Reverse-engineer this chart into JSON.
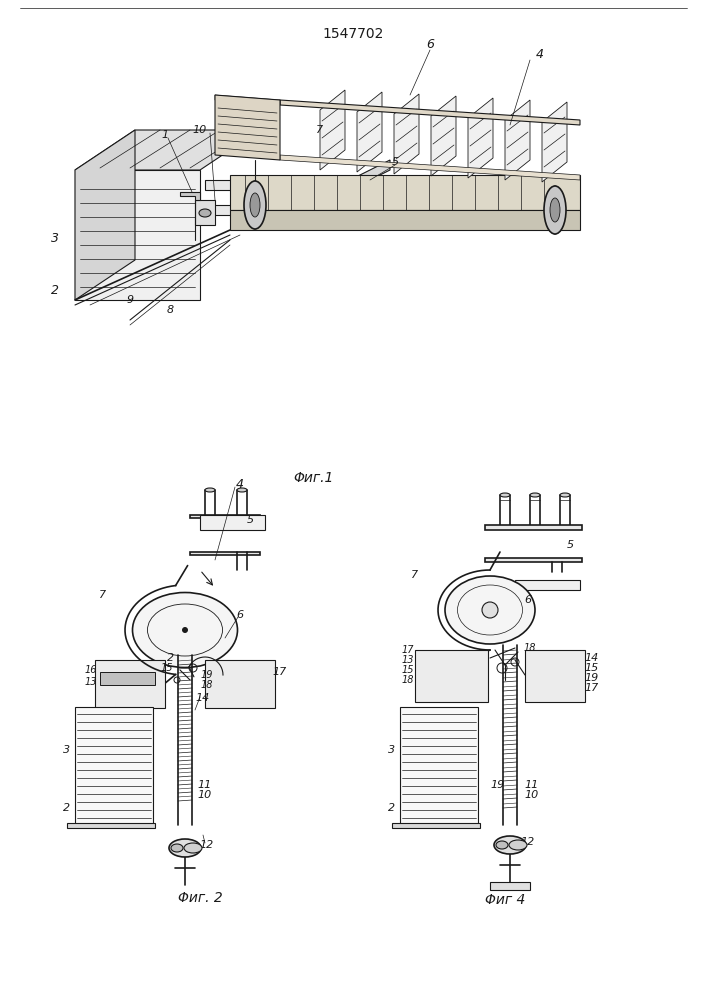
{
  "title": "1547702",
  "fig1_caption": "Φиг.1",
  "fig2_caption": "Φиг. 2",
  "fig4_caption": "Φиг 4",
  "background": "#ffffff",
  "line_color": "#1a1a1a",
  "title_fontsize": 10,
  "caption_fontsize": 9,
  "label_fontsize": 8
}
